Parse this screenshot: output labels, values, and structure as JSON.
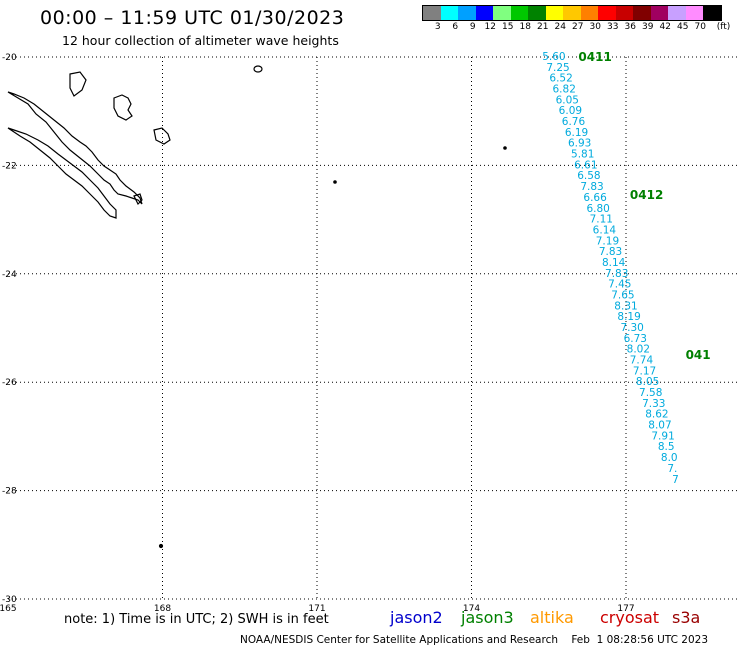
{
  "header": {
    "title": "00:00 – 11:59 UTC 01/30/2023",
    "subtitle": "12 hour collection of altimeter wave heights"
  },
  "colorbar": {
    "unit_label": "(ft)",
    "swatches": [
      {
        "color": "#808080",
        "label": "3"
      },
      {
        "color": "#00ffff",
        "label": "6"
      },
      {
        "color": "#00a0ff",
        "label": "9"
      },
      {
        "color": "#0000ff",
        "label": "12"
      },
      {
        "color": "#80ff80",
        "label": "15"
      },
      {
        "color": "#00c800",
        "label": "18"
      },
      {
        "color": "#008200",
        "label": "21"
      },
      {
        "color": "#ffff00",
        "label": "24"
      },
      {
        "color": "#ffc800",
        "label": "27"
      },
      {
        "color": "#ff8000",
        "label": "30"
      },
      {
        "color": "#ff0000",
        "label": "33"
      },
      {
        "color": "#c80000",
        "label": "36"
      },
      {
        "color": "#800000",
        "label": "39"
      },
      {
        "color": "#a00060",
        "label": "42"
      },
      {
        "color": "#c8a0ff",
        "label": "45"
      },
      {
        "color": "#ff8cff",
        "label": "70"
      },
      {
        "color": "#000000",
        "label": ""
      }
    ]
  },
  "map": {
    "lat_labels": [
      "-20",
      "-22",
      "-24",
      "-26",
      "-28",
      "-30"
    ],
    "lat_values": [
      -20,
      -22,
      -24,
      -26,
      -28,
      -30
    ],
    "lon_labels": [
      "165",
      "168",
      "171",
      "174",
      "177"
    ],
    "lon_values": [
      165,
      168,
      171,
      174,
      177
    ],
    "lon_range": [
      165,
      179.2
    ],
    "lat_range": [
      -20,
      -30
    ],
    "track_color": "#00aadd",
    "time_color": "#008000",
    "track": [
      {
        "lat": -20.0,
        "lon": 175.6,
        "v": "5.60"
      },
      {
        "lat": -20.2,
        "lon": 175.68,
        "v": "7.25"
      },
      {
        "lat": -20.4,
        "lon": 175.74,
        "v": "6.52"
      },
      {
        "lat": -20.6,
        "lon": 175.8,
        "v": "6.82"
      },
      {
        "lat": -20.8,
        "lon": 175.86,
        "v": "6.05"
      },
      {
        "lat": -21.0,
        "lon": 175.92,
        "v": "6.09"
      },
      {
        "lat": -21.2,
        "lon": 175.98,
        "v": "6.76"
      },
      {
        "lat": -21.4,
        "lon": 176.04,
        "v": "6.19"
      },
      {
        "lat": -21.6,
        "lon": 176.1,
        "v": "6.93"
      },
      {
        "lat": -21.8,
        "lon": 176.16,
        "v": "5.81"
      },
      {
        "lat": -22.0,
        "lon": 176.22,
        "v": "6.61"
      },
      {
        "lat": -22.2,
        "lon": 176.28,
        "v": "6.58"
      },
      {
        "lat": -22.4,
        "lon": 176.34,
        "v": "7.83"
      },
      {
        "lat": -22.6,
        "lon": 176.4,
        "v": "6.66"
      },
      {
        "lat": -22.8,
        "lon": 176.46,
        "v": "6.80"
      },
      {
        "lat": -23.0,
        "lon": 176.52,
        "v": "7.11"
      },
      {
        "lat": -23.2,
        "lon": 176.58,
        "v": "6.14"
      },
      {
        "lat": -23.4,
        "lon": 176.64,
        "v": "7.19"
      },
      {
        "lat": -23.6,
        "lon": 176.7,
        "v": "7.83"
      },
      {
        "lat": -23.8,
        "lon": 176.76,
        "v": "8.14"
      },
      {
        "lat": -24.0,
        "lon": 176.82,
        "v": "7.83"
      },
      {
        "lat": -24.2,
        "lon": 176.88,
        "v": "7.45"
      },
      {
        "lat": -24.4,
        "lon": 176.94,
        "v": "7.65"
      },
      {
        "lat": -24.6,
        "lon": 177.0,
        "v": "8.31"
      },
      {
        "lat": -24.8,
        "lon": 177.06,
        "v": "8.19"
      },
      {
        "lat": -25.0,
        "lon": 177.12,
        "v": "7.30"
      },
      {
        "lat": -25.2,
        "lon": 177.18,
        "v": "6.73"
      },
      {
        "lat": -25.4,
        "lon": 177.24,
        "v": "8.02"
      },
      {
        "lat": -25.6,
        "lon": 177.3,
        "v": "7.74"
      },
      {
        "lat": -25.8,
        "lon": 177.36,
        "v": "7.17"
      },
      {
        "lat": -26.0,
        "lon": 177.42,
        "v": "8.05"
      },
      {
        "lat": -26.2,
        "lon": 177.48,
        "v": "7.58"
      },
      {
        "lat": -26.4,
        "lon": 177.54,
        "v": "7.33"
      },
      {
        "lat": -26.6,
        "lon": 177.6,
        "v": "8.62"
      },
      {
        "lat": -26.8,
        "lon": 177.66,
        "v": "8.07"
      },
      {
        "lat": -27.0,
        "lon": 177.72,
        "v": "7.91"
      },
      {
        "lat": -27.2,
        "lon": 177.78,
        "v": "8.5"
      },
      {
        "lat": -27.4,
        "lon": 177.84,
        "v": "8.0"
      },
      {
        "lat": -27.6,
        "lon": 177.9,
        "v": "7."
      },
      {
        "lat": -27.8,
        "lon": 177.96,
        "v": "7"
      }
    ],
    "time_labels": [
      {
        "lat": -20.0,
        "lon": 176.4,
        "t": "0411"
      },
      {
        "lat": -22.55,
        "lon": 177.4,
        "t": "0412"
      },
      {
        "lat": -25.5,
        "lon": 178.4,
        "t": "041"
      }
    ]
  },
  "footer": {
    "note": "note: 1) Time is in UTC; 2) SWH is in feet",
    "satellites": [
      {
        "name": "jason2",
        "color": "#0000cc"
      },
      {
        "name": "jason3",
        "color": "#008000"
      },
      {
        "name": "altika",
        "color": "#ff9900"
      },
      {
        "name": "cryosat",
        "color": "#cc0000"
      },
      {
        "name": "s3a",
        "color": "#990000"
      }
    ],
    "credit": "NOAA/NESDIS Center for Satellite Applications and Research    Feb  1 08:28:56 UTC 2023"
  }
}
